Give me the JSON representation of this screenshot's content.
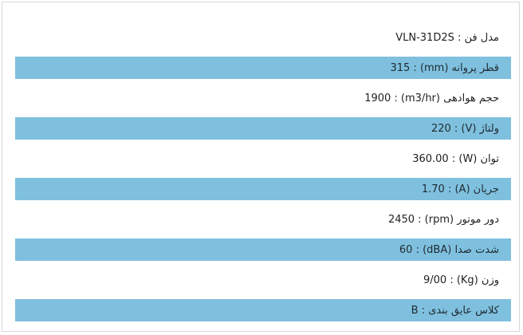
{
  "specs": [
    {
      "text": "مدل فن : VLN-31D2S",
      "highlight": false
    },
    {
      "text": "قطر پروانه (mm) : 315",
      "highlight": true
    },
    {
      "text": "حجم هوادهی (m3/hr) : 1900",
      "highlight": false
    },
    {
      "text": "ولتاژ (V) : 220",
      "highlight": true
    },
    {
      "text": "توان (W) : 360.00",
      "highlight": false
    },
    {
      "text": "جریان (A) : 1.70",
      "highlight": true
    },
    {
      "text": "دور موتور (rpm) : 2450",
      "highlight": false
    },
    {
      "text": "شدت صدا (dBA) : 60",
      "highlight": true
    },
    {
      "text": "وزن (Kg) : 9/00",
      "highlight": false
    },
    {
      "text": "کلاس عایق بندی : B",
      "highlight": true
    }
  ],
  "colors": {
    "row_highlight": "#7fc0df",
    "border": "#d9d9d9",
    "text": "#222222"
  }
}
